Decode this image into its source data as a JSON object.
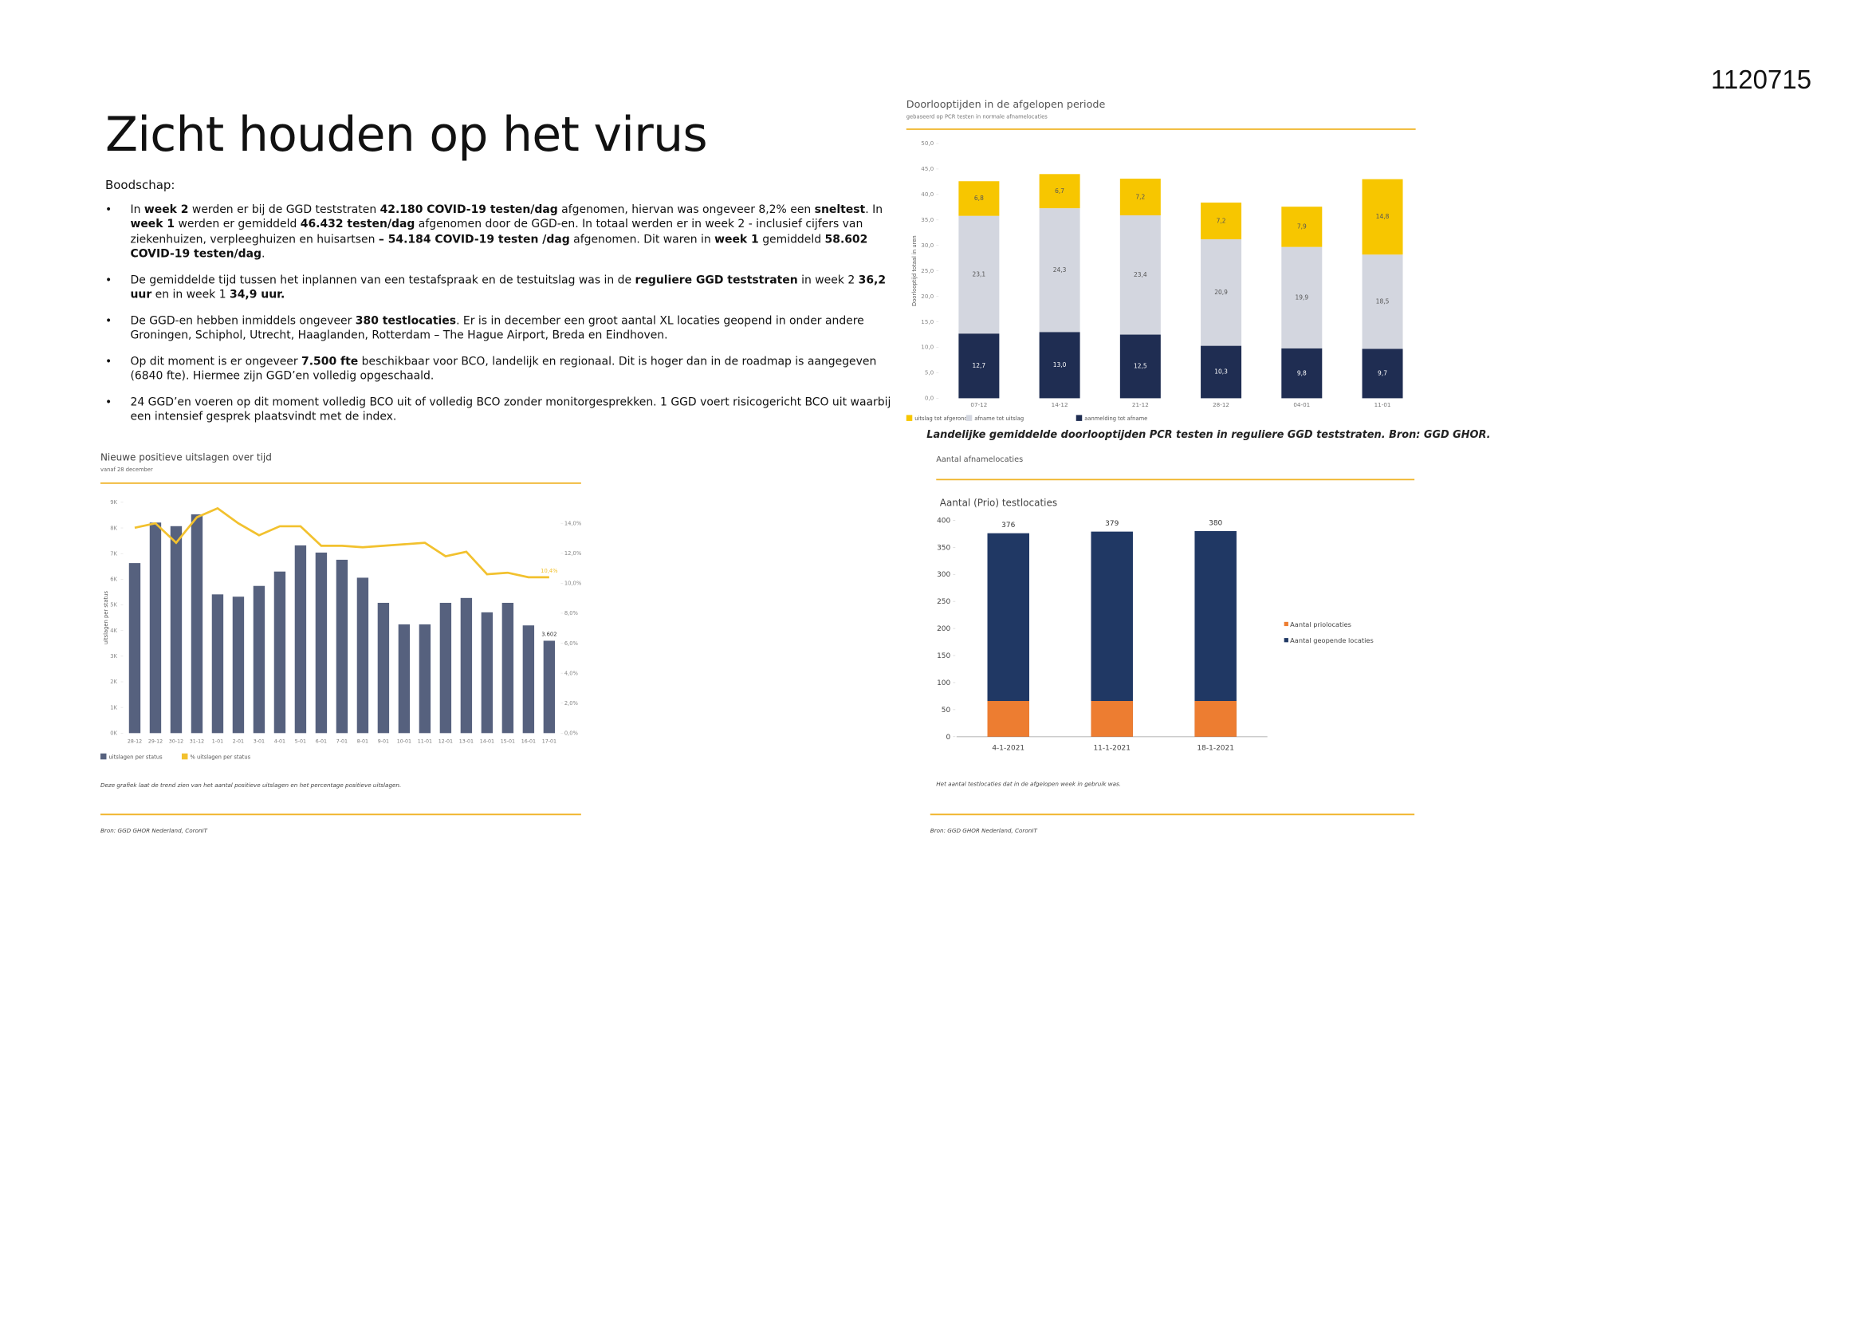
{
  "header": {
    "id": "1120715",
    "title": "Zicht houden op het virus",
    "lead": "Boodschap:"
  },
  "bullets": [
    {
      "runs": [
        {
          "text": "In ",
          "bold": false
        },
        {
          "text": "week 2",
          "bold": true
        },
        {
          "text": " werden er bij de GGD teststraten ",
          "bold": false
        },
        {
          "text": "42.180 COVID-19 testen/dag",
          "bold": true
        },
        {
          "text": " afgenomen, hiervan was ongeveer 8,2% een ",
          "bold": false
        },
        {
          "text": "sneltest",
          "bold": true
        },
        {
          "text": ". In ",
          "bold": false
        },
        {
          "text": "week 1",
          "bold": true
        },
        {
          "text": " werden er gemiddeld ",
          "bold": false
        },
        {
          "text": "46.432 testen/dag",
          "bold": true
        },
        {
          "text": " afgenomen door de GGD-en. In totaal werden er in week 2 - inclusief cijfers van ziekenhuizen, verpleeghuizen en huisartsen ",
          "bold": false
        },
        {
          "text": "– 54.184 COVID-19 testen /dag",
          "bold": true
        },
        {
          "text": " afgenomen. Dit waren in ",
          "bold": false
        },
        {
          "text": "week 1",
          "bold": true
        },
        {
          "text": " gemiddeld ",
          "bold": false
        },
        {
          "text": "58.602 COVID-19 testen/dag",
          "bold": true
        },
        {
          "text": ".",
          "bold": false
        }
      ]
    },
    {
      "runs": [
        {
          "text": "De gemiddelde tijd tussen het inplannen van een testafspraak en de testuitslag was in de ",
          "bold": false
        },
        {
          "text": "reguliere GGD teststraten",
          "bold": true
        },
        {
          "text": " in week 2 ",
          "bold": false
        },
        {
          "text": "36,2 uur",
          "bold": true
        },
        {
          "text": " en in week 1 ",
          "bold": false
        },
        {
          "text": "34,9 uur.",
          "bold": true
        }
      ]
    },
    {
      "runs": [
        {
          "text": "De GGD-en hebben inmiddels ongeveer ",
          "bold": false
        },
        {
          "text": "380 testlocaties",
          "bold": true
        },
        {
          "text": ". Er is in december een groot aantal XL locaties geopend in onder andere Groningen, Schiphol, Utrecht, Haaglanden, Rotterdam – The Hague Airport, Breda en Eindhoven.",
          "bold": false
        }
      ]
    },
    {
      "runs": [
        {
          "text": "Op dit moment is er ongeveer ",
          "bold": false
        },
        {
          "text": "7.500 fte",
          "bold": true
        },
        {
          "text": " beschikbaar voor BCO, landelijk en regionaal. Dit is hoger dan in de roadmap is aangegeven (6840 fte). Hiermee zijn GGD’en volledig opgeschaald.",
          "bold": false
        }
      ]
    },
    {
      "runs": [
        {
          "text": "24 GGD’en voeren op dit moment volledig BCO uit of volledig BCO zonder monitorgesprekken. 1 GGD voert risicogericht BCO uit waarbij een intensief gesprek plaatsvindt met de index.",
          "bold": false
        }
      ]
    }
  ],
  "chart_data": [
    {
      "type": "combo",
      "title": "Nieuwe positieve uitslagen over tijd",
      "subtitle": "vanaf 28 december",
      "y_label": "uitslagen per status",
      "categories": [
        "28-12",
        "29-12",
        "30-12",
        "31-12",
        "1-01",
        "2-01",
        "3-01",
        "4-01",
        "5-01",
        "6-01",
        "7-01",
        "8-01",
        "9-01",
        "10-01",
        "11-01",
        "12-01",
        "13-01",
        "14-01",
        "15-01",
        "16-01",
        "17-01"
      ],
      "series": [
        {
          "name": "uitslagen per status",
          "type": "bar",
          "color": "#56617e",
          "values": [
            6630,
            8210,
            8070,
            8530,
            5410,
            5320,
            5740,
            6300,
            7320,
            7040,
            6760,
            6060,
            5080,
            4240,
            4240,
            5080,
            5270,
            4710,
            5080,
            4200,
            3602
          ],
          "value_labels": [
            null,
            null,
            null,
            null,
            null,
            null,
            null,
            null,
            null,
            null,
            null,
            null,
            null,
            null,
            null,
            null,
            null,
            null,
            null,
            null,
            "3.602"
          ]
        },
        {
          "name": "% uitslagen per status",
          "type": "line",
          "axis": "y2",
          "color": "#f2c12e",
          "values": [
            13.7,
            14.0,
            12.7,
            14.4,
            15.0,
            14.0,
            13.2,
            13.8,
            13.8,
            12.5,
            12.5,
            12.4,
            12.5,
            12.6,
            12.7,
            11.8,
            12.1,
            10.6,
            10.7,
            10.4,
            10.4
          ],
          "value_labels": [
            null,
            null,
            null,
            null,
            null,
            null,
            null,
            null,
            null,
            null,
            null,
            null,
            null,
            null,
            null,
            null,
            null,
            null,
            null,
            null,
            "10,4%"
          ]
        }
      ],
      "ylim": [
        0,
        9000
      ],
      "yticks": [
        {
          "value": 0,
          "label": "0K"
        },
        {
          "value": 1000,
          "label": "1K"
        },
        {
          "value": 2000,
          "label": "2K"
        },
        {
          "value": 3000,
          "label": "3K"
        },
        {
          "value": 4000,
          "label": "4K"
        },
        {
          "value": 5000,
          "label": "5K"
        },
        {
          "value": 6000,
          "label": "6K"
        },
        {
          "value": 7000,
          "label": "7K"
        },
        {
          "value": 8000,
          "label": "8K"
        },
        {
          "value": 9000,
          "label": "9K"
        }
      ],
      "y2lim": [
        0,
        15.4
      ],
      "y2ticks": [
        {
          "value": 0,
          "label": "0,0%"
        },
        {
          "value": 2,
          "label": "2,0%"
        },
        {
          "value": 4,
          "label": "4,0%"
        },
        {
          "value": 6,
          "label": "6,0%"
        },
        {
          "value": 8,
          "label": "8,0%"
        },
        {
          "value": 10,
          "label": "10,0%"
        },
        {
          "value": 12,
          "label": "12,0%"
        },
        {
          "value": 14,
          "label": "14,0%"
        }
      ],
      "note": "Deze grafiek laat de trend zien van het aantal positieve uitslagen en het percentage positieve uitslagen.",
      "source": "Bron: GGD GHOR Nederland, CoronIT"
    },
    {
      "type": "bar",
      "stacked": true,
      "title": "Doorlooptijden in de afgelopen periode",
      "subtitle": "gebaseerd op PCR testen in normale afnamelocaties",
      "y_label": "Doorlooptijd totaal in uren",
      "categories": [
        "07-12",
        "14-12",
        "21-12",
        "28-12",
        "04-01",
        "11-01"
      ],
      "series": [
        {
          "name": "uitslag tot afgerond",
          "color": "#f7c600",
          "values": [
            6.8,
            6.7,
            7.2,
            7.2,
            7.9,
            14.8
          ],
          "value_labels": [
            "6,8",
            "6,7",
            "7,2",
            "7,2",
            "7,9",
            "14,8"
          ]
        },
        {
          "name": "afname tot uitslag",
          "color": "#d3d6df",
          "values": [
            23.1,
            24.3,
            23.4,
            20.9,
            19.9,
            18.5
          ],
          "value_labels": [
            "23,1",
            "24,3",
            "23,4",
            "20,9",
            "19,9",
            "18,5"
          ]
        },
        {
          "name": "aanmelding tot afname",
          "color": "#1f2d52",
          "values": [
            12.7,
            13.0,
            12.5,
            10.3,
            9.8,
            9.7
          ],
          "value_labels": [
            "12,7",
            "13,0",
            "12,5",
            "10,3",
            "9,8",
            "9,7"
          ]
        }
      ],
      "ylim": [
        0,
        50
      ],
      "yticks": [
        {
          "value": 0,
          "label": "0,0"
        },
        {
          "value": 5,
          "label": "5,0"
        },
        {
          "value": 10,
          "label": "10,0"
        },
        {
          "value": 15,
          "label": "15,0"
        },
        {
          "value": 20,
          "label": "20,0"
        },
        {
          "value": 25,
          "label": "25,0"
        },
        {
          "value": 30,
          "label": "30,0"
        },
        {
          "value": 35,
          "label": "35,0"
        },
        {
          "value": 40,
          "label": "40,0"
        },
        {
          "value": 45,
          "label": "45,0"
        },
        {
          "value": 50,
          "label": "50,0"
        }
      ],
      "caption": "Landelijke gemiddelde doorlooptijden PCR testen in reguliere GGD teststraten. Bron: GGD GHOR."
    },
    {
      "type": "bar",
      "stacked": false,
      "header": "Aantal afnamelocaties",
      "title": "Aantal (Prio) testlocaties",
      "categories": [
        "4-1-2021",
        "11-1-2021",
        "18-1-2021"
      ],
      "series": [
        {
          "name": "Aantal priolocaties",
          "color": "#ed7d31",
          "values": [
            66,
            66,
            66
          ]
        },
        {
          "name": "Aantal geopende locaties",
          "color": "#203864",
          "values": [
            376,
            379,
            380
          ],
          "show_labels": true
        }
      ],
      "ylim": [
        0,
        400
      ],
      "yticks": [
        0,
        50,
        100,
        150,
        200,
        250,
        300,
        350,
        400
      ],
      "note": "Het aantal testlocaties dat in de afgelopen week in gebruik was.",
      "source": "Bron: GGD GHOR Nederland, CoronIT"
    }
  ]
}
